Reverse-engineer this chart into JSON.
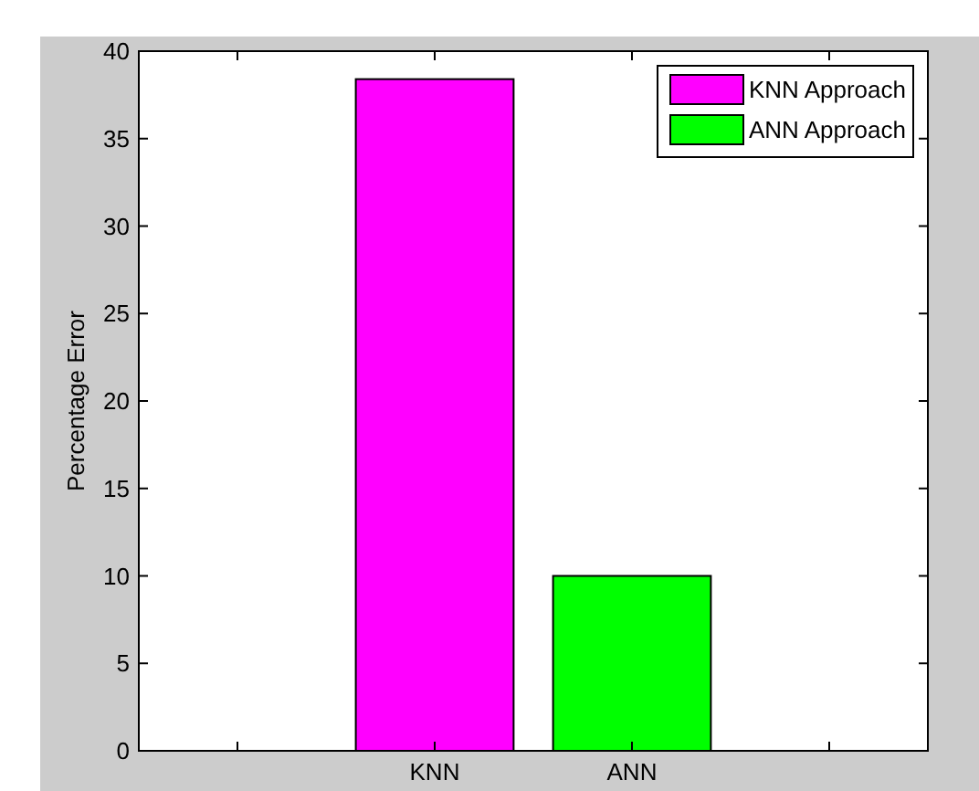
{
  "chart_data": {
    "type": "bar",
    "ylabel": "Percentage Error",
    "categories": [
      null,
      "KNN",
      "ANN",
      null
    ],
    "stacked": true,
    "series": [
      {
        "name": "KNN Approach",
        "color": "#ff00ff",
        "values": [
          null,
          38.4,
          null,
          null
        ]
      },
      {
        "name": "ANN Approach",
        "color": "#00ff00",
        "values": [
          null,
          null,
          10,
          null
        ]
      }
    ],
    "ylim": [
      0,
      40
    ],
    "yticks": [
      0,
      5,
      10,
      15,
      20,
      25,
      30,
      35,
      40
    ],
    "legend": "top right",
    "grid": false
  }
}
